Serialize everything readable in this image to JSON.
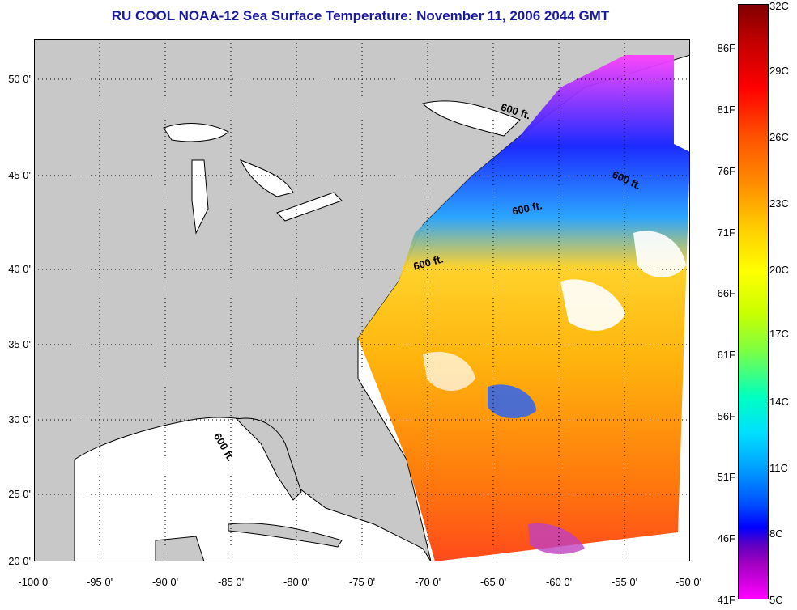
{
  "title": "RU COOL  NOAA-12  Sea Surface Temperature:  November 11, 2006 2044 GMT",
  "latitude_labels": [
    "50 0'",
    "45 0'",
    "40 0'",
    "35 0'",
    "30 0'",
    "25 0'",
    "20 0'"
  ],
  "longitude_labels": [
    "-100 0'",
    "-95 0'",
    "-90 0'",
    "-85 0'",
    "-80 0'",
    "-75 0'",
    "-70 0'",
    "-65 0'",
    "-60 0'",
    "-55 0'",
    "-50 0'"
  ],
  "colorbar": {
    "fahrenheit_labels": [
      "86F",
      "81F",
      "76F",
      "71F",
      "66F",
      "61F",
      "56F",
      "51F",
      "46F",
      "41F"
    ],
    "celsius_labels": [
      "32C",
      "29C",
      "26C",
      "23C",
      "20C",
      "17C",
      "14C",
      "11C",
      "8C",
      "5C"
    ]
  },
  "contour_labels": [
    "600 ft.",
    "600 ft.",
    "600 ft.",
    "600 ft.",
    "600 ft."
  ],
  "colors": {
    "land": "#c8c8c8",
    "title": "#1a1aa0",
    "no_data": "#ffffff"
  }
}
